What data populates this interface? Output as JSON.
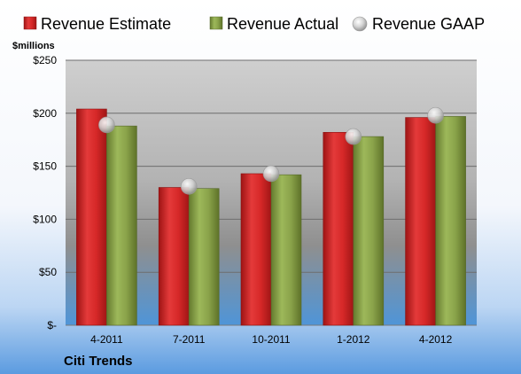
{
  "chart_data": {
    "type": "bar",
    "categories": [
      "4-2011",
      "7-2011",
      "10-2011",
      "1-2012",
      "4-2012"
    ],
    "series": [
      {
        "name": "Revenue Estimate",
        "type": "bar",
        "color": "#d42a2a",
        "values": [
          204,
          130,
          143,
          182,
          196
        ]
      },
      {
        "name": "Revenue Actual",
        "type": "bar",
        "color": "#8aa34a",
        "values": [
          188,
          129,
          142,
          178,
          197
        ]
      },
      {
        "name": "Revenue GAAP",
        "type": "scatter",
        "color": "#c8c8c8",
        "values": [
          189,
          131,
          143,
          178,
          198
        ]
      }
    ],
    "ylabel": "$millions",
    "ylim": [
      0,
      250
    ],
    "yticks": [
      0,
      50,
      100,
      150,
      200,
      250
    ],
    "ytick_labels": [
      "$-",
      "$50",
      "$100",
      "$150",
      "$200",
      "$250"
    ],
    "grid": true,
    "legend": "top"
  },
  "company_name": "Citi Trends"
}
